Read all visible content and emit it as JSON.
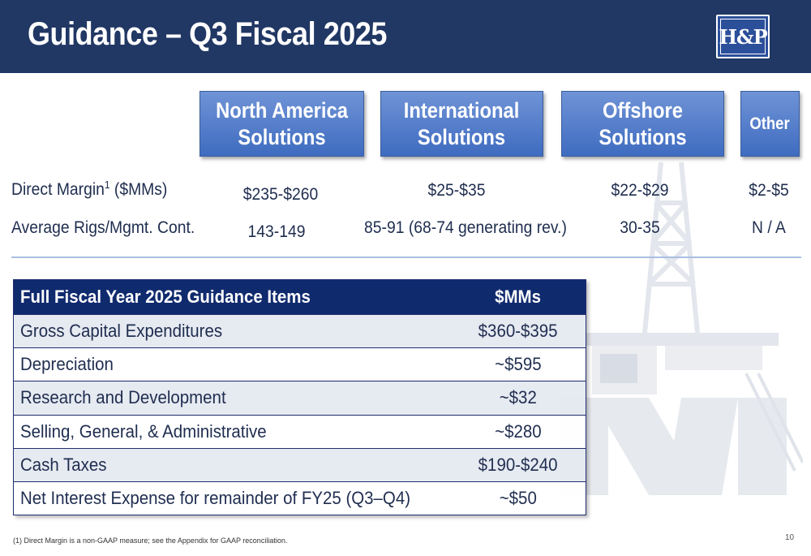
{
  "header": {
    "title": "Guidance – Q3 Fiscal 2025",
    "logo_text": "H&P"
  },
  "segments": {
    "north_america": "North America\nSolutions",
    "international": "International\nSolutions",
    "offshore": "Offshore\nSolutions",
    "other": "Other"
  },
  "rows": {
    "direct_margin": {
      "label": "Direct Margin",
      "footnote_marker": "1",
      "unit": " ($MMs)",
      "north_america": "$235-$260",
      "international": "$25-$35",
      "offshore": "$22-$29",
      "other": "$2-$5"
    },
    "avg_rigs": {
      "label": "Average Rigs/Mgmt. Cont.",
      "north_america": "143-149",
      "international": "85-91 (68-74 generating rev.)",
      "offshore": "30-35",
      "other": "N / A"
    }
  },
  "table": {
    "header_item": "Full Fiscal Year 2025 Guidance Items",
    "header_value": "$MMs",
    "rows": [
      {
        "item": "Gross Capital Expenditures",
        "value": "$360-$395"
      },
      {
        "item": "Depreciation",
        "value": "~$595"
      },
      {
        "item": "Research and Development",
        "value": "~$32"
      },
      {
        "item": "Selling, General, & Administrative",
        "value": "~$280"
      },
      {
        "item": "Cash Taxes",
        "value": "$190-$240"
      },
      {
        "item": "Net Interest Expense for remainder of FY25 (Q3–Q4)",
        "value": "~$50"
      }
    ]
  },
  "footnote": "(1)    Direct Margin is a non-GAAP measure; see the Appendix for GAAP reconciliation.",
  "page_number": "10",
  "colors": {
    "header_bg": "#213764",
    "button_gradient_top": "#6f93d6",
    "button_gradient_bottom": "#3f6cc0",
    "table_header_bg": "#102a6e",
    "text": "#1f2d4f"
  }
}
